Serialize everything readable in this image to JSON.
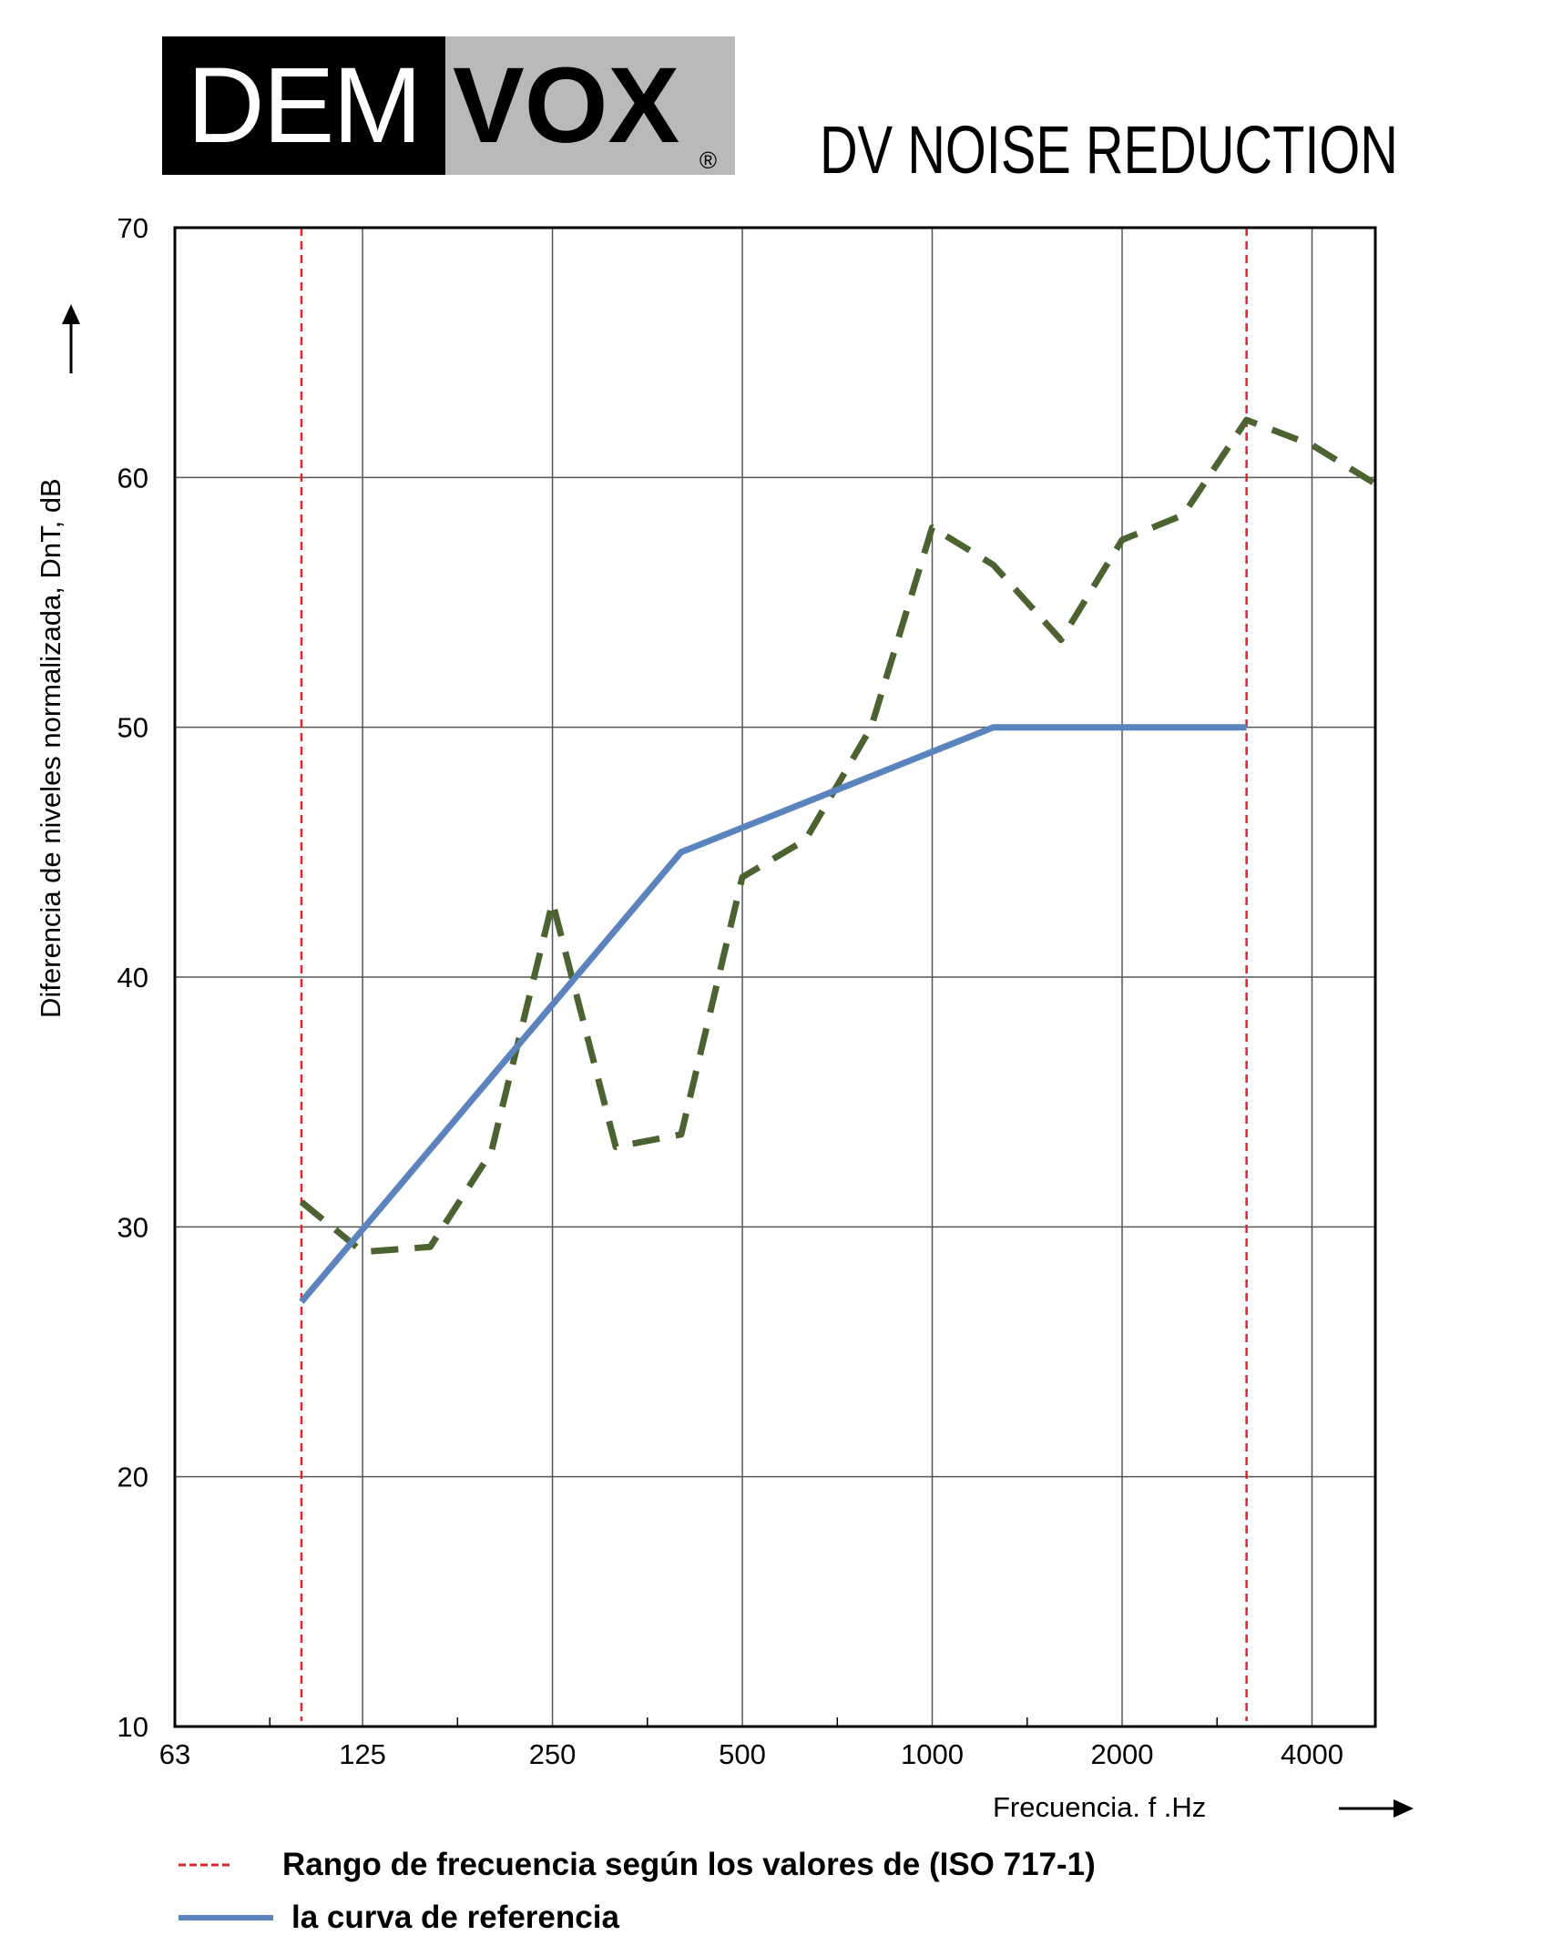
{
  "brand": {
    "logo_dark_text": "DEM",
    "logo_light_text": "VOX",
    "registered_mark": "®",
    "product_title": "DV NOISE REDUCTION"
  },
  "colors": {
    "measured_line": "#4a6330",
    "reference_line": "#5b83be",
    "range_line": "#e8242a",
    "logo_dark": "#000000",
    "logo_light": "#b8b9b8"
  },
  "chart_data": {
    "type": "line",
    "title": "",
    "xlabel": "Frecuencia. f .Hz",
    "ylabel": "Diferencia de niveles normalizada, DnT, dB",
    "x_scale": "log2",
    "xlim": [
      63,
      5040
    ],
    "ylim": [
      10,
      70
    ],
    "x_ticks": [
      63,
      125,
      250,
      500,
      1000,
      2000,
      4000
    ],
    "x_tick_labels": [
      "63",
      "125",
      "250",
      "500",
      "1000",
      "2000",
      "4000"
    ],
    "y_ticks": [
      10,
      20,
      30,
      40,
      50,
      60,
      70
    ],
    "y_tick_labels": [
      "10",
      "20",
      "30",
      "40",
      "50",
      "60",
      "70"
    ],
    "grid": true,
    "iso_range_markers_hz": [
      100,
      3150
    ],
    "series": [
      {
        "name": "",
        "style": "dashed",
        "x": [
          100,
          125,
          160,
          200,
          250,
          315,
          400,
          500,
          630,
          800,
          1000,
          1250,
          1600,
          2000,
          2500,
          3150,
          4000,
          5000
        ],
        "y": [
          31,
          29,
          29.2,
          33,
          43,
          33.2,
          33.7,
          44,
          45.5,
          50,
          58,
          56.5,
          53.5,
          57.5,
          58.5,
          62.3,
          61.3,
          59.8
        ]
      },
      {
        "name": "la curva de referencia",
        "style": "solid",
        "x": [
          100,
          400,
          1250,
          3150
        ],
        "y": [
          27,
          45,
          50,
          50
        ]
      }
    ],
    "legend": [
      {
        "marker": "red-dashed",
        "label": "Rango de frecuencia según los valores de (ISO 717-1)"
      },
      {
        "marker": "blue-solid",
        "label": "la curva de referencia"
      }
    ],
    "legend_placement": "bottom"
  }
}
